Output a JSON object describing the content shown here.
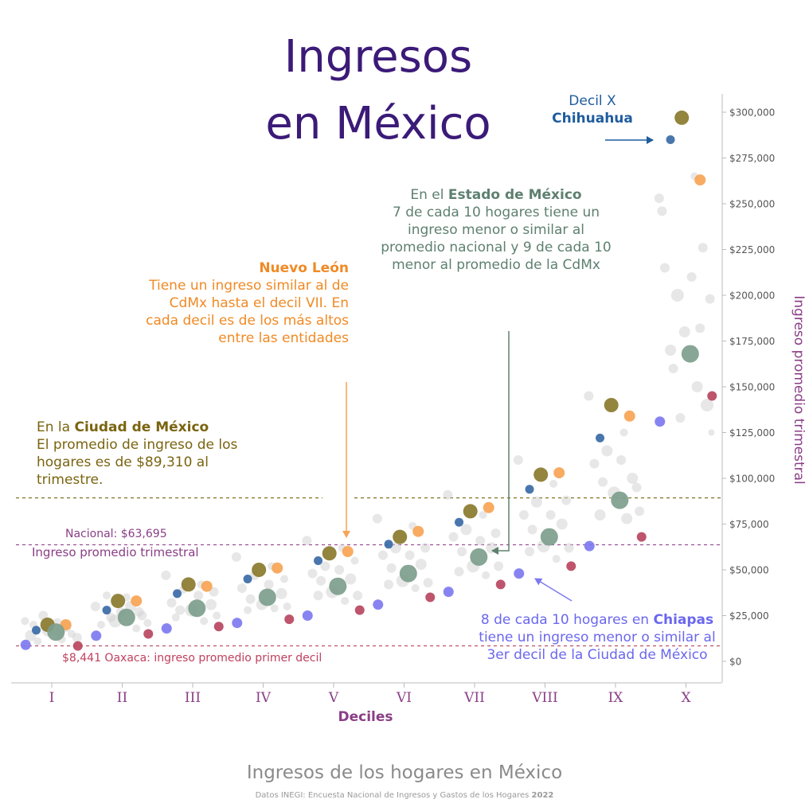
{
  "title": {
    "line1": "Ingresos",
    "line2": "en México"
  },
  "annotations": {
    "cdmx": {
      "prefix": "En la ",
      "bold": "Ciudad de México",
      "text": "El promedio de ingreso de los hogares es de $89,310 al trimestre."
    },
    "nuevo_leon": {
      "bold": "Nuevo León",
      "text": "Tiene un ingreso similar al de CdMx hasta el decil VII. En cada decil es de los más altos entre las entidades"
    },
    "edomex": {
      "prefix": "En el ",
      "bold": "Estado de México",
      "text": "7 de cada 10 hogares tiene un ingreso menor o similar al promedio nacional y 9 de cada 10 menor al promedio de la CdMx"
    },
    "chiapas": {
      "prefix": "8 de cada 10 hogares en ",
      "bold": "Chiapas",
      "text": " tiene un ingreso menor o similar al 3er decil de la Ciudad de México"
    },
    "chihuahua": {
      "line1": "Decil X",
      "bold": "Chihuahua"
    }
  },
  "reference_lines": {
    "nacional": {
      "label": "Nacional: $63,695",
      "sublabel": "Ingreso promedio trimestral",
      "value": 63695
    },
    "oaxaca": {
      "label": "$8,441 Oaxaca: ingreso promedio primer decil",
      "value": 8441
    },
    "cdmx": {
      "value": 89310
    }
  },
  "colors": {
    "cdmx": "#8a7a2e",
    "nuevo_leon": "#f7a454",
    "edomex": "#7d9e8c",
    "chiapas": "#7d79f0",
    "chihuahua": "#3a6aa6",
    "oaxaca": "#b8475f",
    "other": "#d3d3d3",
    "nacional_line": "#9b4f96",
    "cdmx_line": "#8a7a2e"
  },
  "chart_data": {
    "type": "scatter",
    "xlabel": "Deciles",
    "ylabel": "Ingreso promedio trimestral",
    "categories": [
      "I",
      "II",
      "III",
      "IV",
      "V",
      "VI",
      "VII",
      "VIII",
      "IX",
      "X"
    ],
    "ylim": [
      -10000,
      312000
    ],
    "yticks": [
      "$0",
      "$25,000",
      "$50,000",
      "$75,000",
      "$100,000",
      "$125,000",
      "$150,000",
      "$175,000",
      "$200,000",
      "$225,000",
      "$250,000",
      "$275,000",
      "$300,000"
    ],
    "ytick_values": [
      0,
      25000,
      50000,
      75000,
      100000,
      125000,
      150000,
      175000,
      200000,
      225000,
      250000,
      275000,
      300000
    ],
    "series": [
      {
        "name": "Ciudad de México",
        "color": "#8a7a2e",
        "values": [
          20000,
          33000,
          42000,
          50000,
          59000,
          68000,
          82000,
          102000,
          140000,
          297000
        ]
      },
      {
        "name": "Nuevo León",
        "color": "#f7a454",
        "values": [
          20000,
          33000,
          41000,
          51000,
          60000,
          71000,
          84000,
          103000,
          134000,
          263000
        ]
      },
      {
        "name": "Estado de México",
        "color": "#7d9e8c",
        "values": [
          16000,
          24000,
          29000,
          35000,
          41000,
          48000,
          57000,
          68000,
          88000,
          168000
        ]
      },
      {
        "name": "Chihuahua",
        "color": "#3a6aa6",
        "values": [
          17000,
          28000,
          37000,
          45000,
          55000,
          64000,
          76000,
          94000,
          122000,
          285000
        ]
      },
      {
        "name": "Chiapas",
        "color": "#7d79f0",
        "values": [
          9000,
          14000,
          18000,
          21000,
          25000,
          31000,
          38000,
          48000,
          63000,
          131000
        ]
      },
      {
        "name": "Oaxaca",
        "color": "#b8475f",
        "values": [
          8441,
          15000,
          19000,
          23000,
          28000,
          35000,
          42000,
          52000,
          68000,
          145000
        ]
      }
    ],
    "other_points": [
      [
        0,
        -0.38,
        22000,
        5
      ],
      [
        0,
        -0.3,
        14000,
        7
      ],
      [
        0,
        -0.2,
        11000,
        5
      ],
      [
        0,
        -0.12,
        25000,
        6
      ],
      [
        0,
        -0.05,
        17000,
        8
      ],
      [
        0,
        0.08,
        21000,
        6
      ],
      [
        0,
        0.14,
        12000,
        5
      ],
      [
        0,
        0.2,
        19000,
        7
      ],
      [
        0,
        0.28,
        15000,
        5
      ],
      [
        0,
        0.36,
        13000,
        6
      ],
      [
        0,
        -0.26,
        20000,
        5
      ],
      [
        0,
        0.1,
        16000,
        6
      ],
      [
        1,
        -0.38,
        30000,
        6
      ],
      [
        1,
        -0.3,
        20000,
        5
      ],
      [
        1,
        -0.22,
        36000,
        5
      ],
      [
        1,
        -0.1,
        22000,
        8
      ],
      [
        1,
        -0.02,
        27000,
        6
      ],
      [
        1,
        0.12,
        30000,
        7
      ],
      [
        1,
        0.2,
        18000,
        5
      ],
      [
        1,
        0.28,
        25000,
        6
      ],
      [
        1,
        0.36,
        21000,
        5
      ],
      [
        1,
        -0.16,
        24000,
        6
      ],
      [
        1,
        0.06,
        35000,
        5
      ],
      [
        1,
        0.24,
        27000,
        6
      ],
      [
        2,
        -0.38,
        47000,
        6
      ],
      [
        2,
        -0.3,
        32000,
        6
      ],
      [
        2,
        -0.24,
        24000,
        5
      ],
      [
        2,
        -0.14,
        39000,
        5
      ],
      [
        2,
        -0.02,
        28000,
        8
      ],
      [
        2,
        0.08,
        36000,
        6
      ],
      [
        2,
        0.16,
        22000,
        5
      ],
      [
        2,
        0.26,
        31000,
        7
      ],
      [
        2,
        0.34,
        25000,
        5
      ],
      [
        2,
        -0.18,
        28000,
        6
      ],
      [
        2,
        0.12,
        42000,
        5
      ],
      [
        2,
        0.3,
        38000,
        6
      ],
      [
        3,
        -0.38,
        57000,
        6
      ],
      [
        3,
        -0.3,
        40000,
        6
      ],
      [
        3,
        -0.22,
        28000,
        5
      ],
      [
        3,
        -0.12,
        47000,
        6
      ],
      [
        3,
        -0.02,
        31000,
        7
      ],
      [
        3,
        0.08,
        42000,
        6
      ],
      [
        3,
        0.16,
        29000,
        5
      ],
      [
        3,
        0.26,
        37000,
        7
      ],
      [
        3,
        0.34,
        30000,
        5
      ],
      [
        3,
        -0.18,
        34000,
        6
      ],
      [
        3,
        0.12,
        52000,
        5
      ],
      [
        3,
        0.3,
        45000,
        5
      ],
      [
        4,
        -0.38,
        66000,
        6
      ],
      [
        4,
        -0.3,
        48000,
        6
      ],
      [
        4,
        -0.22,
        36000,
        6
      ],
      [
        4,
        -0.12,
        52000,
        6
      ],
      [
        4,
        -0.02,
        38000,
        8
      ],
      [
        4,
        0.08,
        50000,
        6
      ],
      [
        4,
        0.16,
        33000,
        5
      ],
      [
        4,
        0.24,
        45000,
        7
      ],
      [
        4,
        0.34,
        36000,
        6
      ],
      [
        4,
        -0.18,
        44000,
        6
      ],
      [
        4,
        0.12,
        62000,
        5
      ],
      [
        4,
        0.3,
        55000,
        5
      ],
      [
        5,
        -0.38,
        78000,
        6
      ],
      [
        5,
        -0.3,
        58000,
        6
      ],
      [
        5,
        -0.22,
        42000,
        6
      ],
      [
        5,
        -0.12,
        62000,
        7
      ],
      [
        5,
        -0.02,
        44000,
        8
      ],
      [
        5,
        0.08,
        58000,
        6
      ],
      [
        5,
        0.16,
        40000,
        5
      ],
      [
        5,
        0.24,
        53000,
        7
      ],
      [
        5,
        0.34,
        43000,
        6
      ],
      [
        5,
        -0.18,
        51000,
        6
      ],
      [
        5,
        0.12,
        74000,
        5
      ],
      [
        5,
        0.3,
        62000,
        6
      ],
      [
        6,
        -0.38,
        91000,
        6
      ],
      [
        6,
        -0.3,
        68000,
        6
      ],
      [
        6,
        -0.22,
        49000,
        6
      ],
      [
        6,
        -0.12,
        72000,
        7
      ],
      [
        6,
        -0.02,
        52000,
        8
      ],
      [
        6,
        0.08,
        66000,
        6
      ],
      [
        6,
        0.16,
        47000,
        5
      ],
      [
        6,
        0.24,
        62000,
        7
      ],
      [
        6,
        0.34,
        52000,
        6
      ],
      [
        6,
        -0.18,
        60000,
        6
      ],
      [
        6,
        0.12,
        80000,
        5
      ],
      [
        6,
        0.3,
        70000,
        6
      ],
      [
        7,
        -0.38,
        110000,
        6
      ],
      [
        7,
        -0.3,
        80000,
        6
      ],
      [
        7,
        -0.22,
        60000,
        6
      ],
      [
        7,
        -0.12,
        87000,
        7
      ],
      [
        7,
        -0.02,
        63000,
        8
      ],
      [
        7,
        0.08,
        80000,
        6
      ],
      [
        7,
        0.16,
        56000,
        5
      ],
      [
        7,
        0.24,
        75000,
        7
      ],
      [
        7,
        0.34,
        62000,
        6
      ],
      [
        7,
        -0.18,
        72000,
        6
      ],
      [
        7,
        0.12,
        97000,
        5
      ],
      [
        7,
        0.3,
        88000,
        6
      ],
      [
        8,
        -0.38,
        145000,
        6
      ],
      [
        8,
        -0.3,
        108000,
        6
      ],
      [
        8,
        -0.22,
        80000,
        7
      ],
      [
        8,
        -0.12,
        115000,
        7
      ],
      [
        8,
        -0.02,
        92000,
        8
      ],
      [
        8,
        0.08,
        110000,
        6
      ],
      [
        8,
        0.16,
        78000,
        7
      ],
      [
        8,
        0.24,
        100000,
        7
      ],
      [
        8,
        0.34,
        82000,
        6
      ],
      [
        8,
        -0.18,
        98000,
        6
      ],
      [
        8,
        0.12,
        125000,
        5
      ],
      [
        8,
        0.3,
        95000,
        6
      ],
      [
        9,
        -0.38,
        253000,
        6
      ],
      [
        9,
        -0.3,
        215000,
        6
      ],
      [
        9,
        -0.22,
        170000,
        7
      ],
      [
        9,
        -0.12,
        200000,
        8
      ],
      [
        9,
        -0.02,
        180000,
        7
      ],
      [
        9,
        0.08,
        210000,
        6
      ],
      [
        9,
        0.16,
        150000,
        7
      ],
      [
        9,
        0.24,
        226000,
        6
      ],
      [
        9,
        0.34,
        198000,
        6
      ],
      [
        9,
        -0.18,
        160000,
        6
      ],
      [
        9,
        0.12,
        265000,
        5
      ],
      [
        9,
        0.3,
        140000,
        8
      ],
      [
        9,
        -0.34,
        246000,
        6
      ],
      [
        9,
        0.2,
        182000,
        6
      ],
      [
        9,
        -0.08,
        133000,
        6
      ],
      [
        9,
        0.36,
        125000,
        4
      ]
    ]
  }
}
